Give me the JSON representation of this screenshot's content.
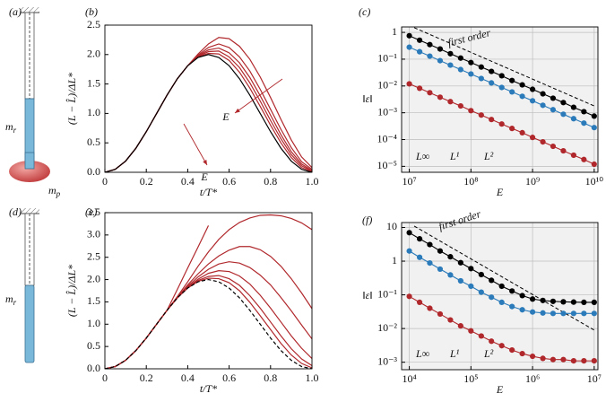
{
  "diagrams": [
    {
      "panel": "(a)",
      "labels": [
        {
          "base": "m",
          "sub": "r"
        },
        {
          "base": "m",
          "sub": "p"
        }
      ]
    },
    {
      "panel": "(d)",
      "labels": [
        {
          "base": "m",
          "sub": "r"
        }
      ]
    }
  ],
  "chart_data": [
    {
      "type": "line",
      "panel": "(b)",
      "xlabel": "t/T*",
      "ylabel": "(L − L̂)/ΔL*",
      "annotation": "E",
      "x": [
        0,
        0.05,
        0.1,
        0.15,
        0.2,
        0.25,
        0.3,
        0.35,
        0.4,
        0.45,
        0.5,
        0.55,
        0.6,
        0.65,
        0.7,
        0.75,
        0.8,
        0.85,
        0.9,
        0.95,
        1
      ],
      "xlim": [
        0,
        1
      ],
      "xticks": [
        0,
        0.2,
        0.4,
        0.6,
        0.8,
        {
          "value": 1,
          "label": "1.0"
        }
      ],
      "ylim": [
        0,
        2.5
      ],
      "yticks": [
        {
          "value": 0,
          "label": "0.0"
        },
        0.5,
        {
          "value": 1,
          "label": "1.0"
        },
        1.5,
        {
          "value": 2,
          "label": "2.0"
        },
        2.5
      ],
      "series": [
        {
          "color": "#b0282c",
          "values": [
            0,
            0.05,
            0.19,
            0.41,
            0.69,
            1.0,
            1.31,
            1.59,
            1.81,
            1.96,
            2.02,
            2.01,
            1.9,
            1.7,
            1.43,
            1.12,
            0.8,
            0.5,
            0.25,
            0.08,
            0.01
          ]
        },
        {
          "color": "#b0282c",
          "values": [
            0,
            0.05,
            0.19,
            0.41,
            0.69,
            1.0,
            1.31,
            1.59,
            1.81,
            1.97,
            2.05,
            2.06,
            1.96,
            1.78,
            1.52,
            1.21,
            0.88,
            0.57,
            0.3,
            0.11,
            0.02
          ]
        },
        {
          "color": "#b0282c",
          "values": [
            0,
            0.05,
            0.19,
            0.41,
            0.69,
            1.0,
            1.31,
            1.59,
            1.81,
            1.98,
            2.08,
            2.11,
            2.03,
            1.86,
            1.61,
            1.3,
            0.97,
            0.64,
            0.35,
            0.14,
            0.03
          ]
        },
        {
          "color": "#b0282c",
          "values": [
            0,
            0.05,
            0.19,
            0.41,
            0.69,
            1.0,
            1.31,
            1.59,
            1.81,
            1.99,
            2.12,
            2.18,
            2.12,
            1.96,
            1.72,
            1.41,
            1.07,
            0.73,
            0.42,
            0.18,
            0.05
          ]
        },
        {
          "color": "#b0282c",
          "values": [
            0,
            0.05,
            0.19,
            0.41,
            0.69,
            1.0,
            1.31,
            1.59,
            1.81,
            2.01,
            2.18,
            2.29,
            2.27,
            2.14,
            1.92,
            1.62,
            1.27,
            0.9,
            0.55,
            0.26,
            0.08
          ]
        },
        {
          "color": "#000000",
          "values": [
            0,
            0.05,
            0.19,
            0.41,
            0.69,
            1.0,
            1.31,
            1.59,
            1.81,
            1.95,
            2.0,
            1.95,
            1.81,
            1.59,
            1.31,
            1.0,
            0.69,
            0.41,
            0.19,
            0.05,
            0
          ]
        }
      ]
    },
    {
      "type": "line",
      "panel": "(c)",
      "xlabel": "E",
      "ylabel": "‖ε‖",
      "log_x": true,
      "log_y": true,
      "grid": true,
      "markers": true,
      "x": [
        10000000.0,
        14700000.0,
        21500000.0,
        31600000.0,
        46400000.0,
        68100000.0,
        100000000.0,
        147000000.0,
        215000000.0,
        316000000.0,
        464000000.0,
        681000000.0,
        1000000000.0,
        1470000000.0,
        2150000000.0,
        3160000000.0,
        4640000000.0,
        6810000000.0,
        10000000000.0
      ],
      "xlim": [
        7500000.0,
        11500000000.0
      ],
      "xticks": [
        {
          "value": 10000000.0,
          "label": "10⁷"
        },
        {
          "value": 100000000.0,
          "label": "10⁸"
        },
        {
          "value": 1000000000.0,
          "label": "10⁹"
        },
        {
          "value": 10000000000.0,
          "label": "10¹⁰"
        }
      ],
      "ylim": [
        6e-06,
        1.6
      ],
      "yticks": [
        {
          "value": 1e-05,
          "label": "10⁻⁵"
        },
        {
          "value": 0.0001,
          "label": "10⁻⁴"
        },
        {
          "value": 0.001,
          "label": "10⁻³"
        },
        {
          "value": 0.01,
          "label": "10⁻²"
        },
        {
          "value": 0.1,
          "label": "10⁻¹"
        },
        1
      ],
      "reference": {
        "label": "first order",
        "x": [
          12000000.0,
          10000000000.0
        ],
        "values": [
          1.5,
          0.0018
        ]
      },
      "series": [
        {
          "name": "L∞",
          "color": "#000000",
          "values": [
            0.75,
            0.51,
            0.35,
            0.24,
            0.16,
            0.11,
            0.075,
            0.051,
            0.035,
            0.024,
            0.016,
            0.011,
            0.0075,
            0.0051,
            0.0035,
            0.0024,
            0.0016,
            0.0011,
            0.00075
          ]
        },
        {
          "name": "L¹",
          "color": "#2b7bba",
          "values": [
            0.28,
            0.19,
            0.13,
            0.088,
            0.06,
            0.041,
            0.028,
            0.019,
            0.013,
            0.0088,
            0.006,
            0.0041,
            0.0028,
            0.0019,
            0.0013,
            0.00088,
            0.0006,
            0.00041,
            0.00028
          ]
        },
        {
          "name": "L²",
          "color": "#b0282c",
          "values": [
            0.012,
            0.0082,
            0.0056,
            0.0038,
            0.0026,
            0.0018,
            0.0012,
            0.00082,
            0.00056,
            0.00038,
            0.00026,
            0.00018,
            0.00012,
            8.2e-05,
            5.6e-05,
            3.8e-05,
            2.6e-05,
            1.8e-05,
            1.2e-05
          ]
        }
      ]
    },
    {
      "type": "line",
      "panel": "(e)",
      "xlabel": "t/T*",
      "ylabel": "(L − L̂)/ΔL*",
      "annotation": "E",
      "x": [
        0,
        0.05,
        0.1,
        0.15,
        0.2,
        0.25,
        0.3,
        0.35,
        0.4,
        0.45,
        0.5,
        0.55,
        0.6,
        0.65,
        0.7,
        0.75,
        0.8,
        0.85,
        0.9,
        0.95,
        1
      ],
      "xlim": [
        0,
        1
      ],
      "xticks": [
        0,
        0.2,
        0.4,
        0.6,
        0.8,
        {
          "value": 1,
          "label": "1.0"
        }
      ],
      "ylim": [
        0,
        3.5
      ],
      "yticks": [
        {
          "value": 0,
          "label": "0.0"
        },
        0.5,
        {
          "value": 1,
          "label": "1.0"
        },
        1.5,
        {
          "value": 2,
          "label": "2.0"
        },
        2.5,
        {
          "value": 3,
          "label": "3.0"
        },
        3.5
      ],
      "series": [
        {
          "color": "#b0282c",
          "values": [
            0,
            0.05,
            0.19,
            0.41,
            0.69,
            1.0,
            1.31,
            1.78,
            2.26,
            2.73,
            3.21,
            null,
            null,
            null,
            null,
            null,
            null,
            null,
            null,
            null,
            null
          ]
        },
        {
          "color": "#b0282c",
          "values": [
            0,
            0.05,
            0.19,
            0.41,
            0.69,
            1.0,
            1.31,
            1.62,
            1.95,
            2.3,
            2.62,
            2.9,
            3.12,
            3.28,
            3.38,
            3.44,
            3.45,
            3.43,
            3.37,
            3.27,
            3.12
          ]
        },
        {
          "color": "#b0282c",
          "values": [
            0,
            0.05,
            0.19,
            0.41,
            0.69,
            1.0,
            1.31,
            1.6,
            1.88,
            2.13,
            2.35,
            2.53,
            2.66,
            2.74,
            2.74,
            2.67,
            2.52,
            2.3,
            2.02,
            1.7,
            1.35
          ]
        },
        {
          "color": "#b0282c",
          "values": [
            0,
            0.05,
            0.19,
            0.41,
            0.69,
            1.0,
            1.31,
            1.6,
            1.85,
            2.06,
            2.23,
            2.35,
            2.4,
            2.37,
            2.27,
            2.1,
            1.88,
            1.6,
            1.3,
            0.98,
            0.67
          ]
        },
        {
          "color": "#b0282c",
          "values": [
            0,
            0.05,
            0.19,
            0.41,
            0.69,
            1.0,
            1.31,
            1.59,
            1.83,
            2.01,
            2.14,
            2.2,
            2.18,
            2.08,
            1.9,
            1.65,
            1.36,
            1.05,
            0.74,
            0.46,
            0.23
          ]
        },
        {
          "color": "#b0282c",
          "values": [
            0,
            0.05,
            0.19,
            0.41,
            0.69,
            1.0,
            1.31,
            1.59,
            1.82,
            1.98,
            2.07,
            2.09,
            2.02,
            1.87,
            1.64,
            1.36,
            1.05,
            0.74,
            0.45,
            0.22,
            0.07
          ]
        },
        {
          "color": "#b0282c",
          "values": [
            0,
            0.05,
            0.19,
            0.41,
            0.69,
            1.0,
            1.31,
            1.59,
            1.81,
            1.96,
            2.03,
            2.02,
            1.93,
            1.75,
            1.49,
            1.19,
            0.88,
            0.57,
            0.31,
            0.12,
            0.02
          ]
        },
        {
          "color": "#000000",
          "dashed": true,
          "values": [
            0,
            0.05,
            0.19,
            0.41,
            0.69,
            1.0,
            1.31,
            1.59,
            1.81,
            1.95,
            2.0,
            1.95,
            1.81,
            1.59,
            1.31,
            1.0,
            0.69,
            0.41,
            0.19,
            0.05,
            0
          ]
        }
      ]
    },
    {
      "type": "line",
      "panel": "(f)",
      "xlabel": "E",
      "ylabel": "‖ε‖",
      "log_x": true,
      "log_y": true,
      "grid": true,
      "markers": true,
      "x": [
        10000.0,
        14700.0,
        21500.0,
        31600.0,
        46400.0,
        68100.0,
        100000.0,
        147000.0,
        215000.0,
        316000.0,
        464000.0,
        681000.0,
        1000000.0,
        1470000.0,
        2150000.0,
        3160000.0,
        4640000.0,
        6810000.0,
        10000000.0
      ],
      "xlim": [
        7500.0,
        11500000.0
      ],
      "xticks": [
        {
          "value": 10000.0,
          "label": "10⁴"
        },
        {
          "value": 100000.0,
          "label": "10⁵"
        },
        {
          "value": 1000000.0,
          "label": "10⁶"
        },
        {
          "value": 10000000.0,
          "label": "10⁷"
        }
      ],
      "ylim": [
        0.0006,
        14
      ],
      "yticks": [
        {
          "value": 0.001,
          "label": "10⁻³"
        },
        {
          "value": 0.01,
          "label": "10⁻²"
        },
        {
          "value": 0.1,
          "label": "10⁻¹"
        },
        1,
        10
      ],
      "reference": {
        "label": "first order",
        "x": [
          12000.0,
          10000000.0
        ],
        "values": [
          11,
          0.009
        ]
      },
      "series": [
        {
          "name": "L∞",
          "color": "#000000",
          "values": [
            7,
            4.6,
            3.1,
            2.0,
            1.35,
            0.9,
            0.6,
            0.4,
            0.27,
            0.18,
            0.13,
            0.095,
            0.075,
            0.068,
            0.064,
            0.062,
            0.061,
            0.06,
            0.06
          ]
        },
        {
          "name": "L¹",
          "color": "#2b7bba",
          "values": [
            2,
            1.3,
            0.88,
            0.58,
            0.39,
            0.26,
            0.18,
            0.12,
            0.085,
            0.06,
            0.045,
            0.036,
            0.031,
            0.029,
            0.028,
            0.028,
            0.028,
            0.028,
            0.028
          ]
        },
        {
          "name": "L²",
          "color": "#b0282c",
          "values": [
            0.09,
            0.06,
            0.04,
            0.027,
            0.018,
            0.012,
            0.0085,
            0.006,
            0.0042,
            0.0031,
            0.0023,
            0.0018,
            0.0015,
            0.0013,
            0.0012,
            0.0012,
            0.0011,
            0.0011,
            0.0011
          ]
        }
      ]
    }
  ]
}
